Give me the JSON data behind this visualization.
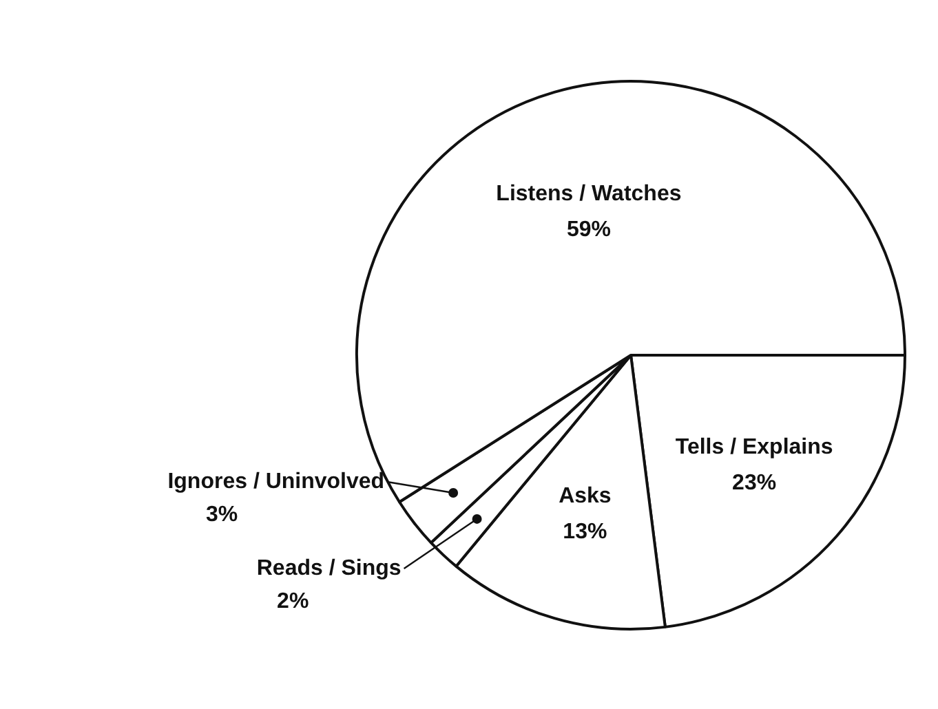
{
  "chart_data": {
    "type": "pie",
    "categories": [
      "Tells / Explains",
      "Asks",
      "Reads / Sings",
      "Ignores / Uninvolved",
      "Listens / Watches"
    ],
    "values": [
      23,
      13,
      2,
      3,
      59
    ],
    "value_labels": [
      "23%",
      "13%",
      "2%",
      "3%",
      "59%"
    ],
    "colors": [
      "#ffffff",
      "#ffffff",
      "#ffffff",
      "#ffffff",
      "#ffffff"
    ]
  }
}
